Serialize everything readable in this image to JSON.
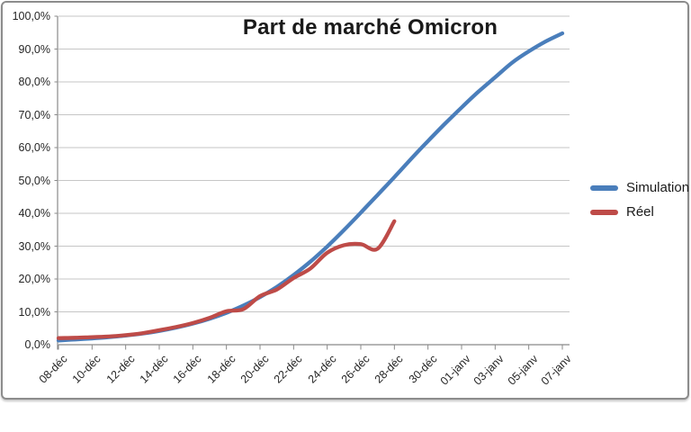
{
  "chart_data": {
    "type": "line",
    "title": "Part de marché Omicron",
    "x_start": "08-déc",
    "x_end": "07-janv",
    "x_step_days": 1,
    "x_tick_labels": [
      "08-déc",
      "10-déc",
      "12-déc",
      "14-déc",
      "16-déc",
      "18-déc",
      "20-déc",
      "22-déc",
      "24-déc",
      "26-déc",
      "28-déc",
      "30-déc",
      "01-janv",
      "03-janv",
      "05-janv",
      "07-janv"
    ],
    "y_tick_labels": [
      "0,0%",
      "10,0%",
      "20,0%",
      "30,0%",
      "40,0%",
      "50,0%",
      "60,0%",
      "70,0%",
      "80,0%",
      "90,0%",
      "100,0%"
    ],
    "ylim": [
      0,
      100
    ],
    "y_unit": "percent",
    "grid": "horizontal",
    "legend_position": "right",
    "series": [
      {
        "name": "Simulation",
        "color": "#4A7EBB",
        "values": [
          1.3,
          1.6,
          1.9,
          2.3,
          2.8,
          3.4,
          4.2,
          5.2,
          6.4,
          7.9,
          9.7,
          11.9,
          14.5,
          17.6,
          21.2,
          25.3,
          29.9,
          34.9,
          40.2,
          45.6,
          51.0,
          56.6,
          62.0,
          67.2,
          72.2,
          77.0,
          81.4,
          85.8,
          89.3,
          92.3,
          94.8
        ]
      },
      {
        "name": "Réel",
        "color": "#BE4B48",
        "values": [
          2.0,
          2.1,
          2.3,
          2.5,
          2.9,
          3.5,
          4.4,
          5.4,
          6.6,
          8.2,
          10.2,
          10.8,
          14.8,
          16.8,
          20.3,
          23.2,
          28.0,
          30.3,
          30.6,
          29.2,
          37.6
        ]
      }
    ],
    "colors": {
      "gridline": "#c6c6c6",
      "axis": "#898989",
      "frame_border": "#8c8c8c",
      "title_text": "#1a1a1a",
      "tick_text": "#262626"
    }
  }
}
